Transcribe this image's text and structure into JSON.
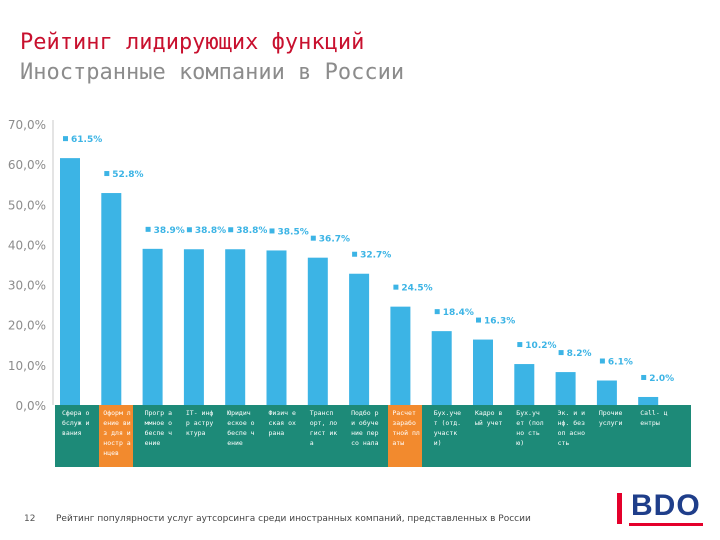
{
  "slide": {
    "title_line1": "Рейтинг лидирующих функций",
    "title_line2": "Иностранные компании в России",
    "page_number": "12",
    "footer": "Рейтинг популярности услуг аутсорсинга среди иностранных компаний, представленных в России",
    "logo_text": "BDO",
    "colors": {
      "title": "#c8102e",
      "subtitle": "#8c8c8c",
      "bar": "#3cb4e5",
      "label": "#3cb4e5",
      "category_strip": "#1d8a78",
      "category_highlight": "#f28a2e",
      "logo_blue": "#1f3e8a",
      "logo_red": "#e4002b"
    }
  },
  "chart_data": {
    "type": "bar",
    "ylim": [
      0,
      70
    ],
    "y_ticks": [
      "0,0%",
      "10,0%",
      "20,0%",
      "30,0%",
      "40,0%",
      "50,0%",
      "60,0%",
      "70,0%"
    ],
    "legend": "none",
    "categories": [
      "Сфера обслуживания",
      "Оформление виз для иностранцев",
      "Программное обеспечение",
      "IT-инфраструктура",
      "Юридическое обеспечение",
      "Физическая охрана",
      "Транспорт, логистика",
      "Подбор и обучение персонала",
      "Расчет заработной платы",
      "Бух.учет (отд. участки)",
      "Кадровый учет",
      "Бух.учет (полностью)",
      "Эк. и инф. безопасность",
      "Прочие услуги",
      "Call-центры"
    ],
    "category_display": [
      "Сфера обслуж ивания",
      "Оформ ление виз для иностр анцев",
      "Прогр аммное обеспе чение",
      "IT- инфр астру ктура",
      "Юридич еское обеспе чение",
      "Физич еская охрана",
      "Трансп орт, логист ика",
      "Подбо р и обуче ние персо нала",
      "Расчет зарабо тной платы",
      "Бух.учет (отд. участки)",
      "Кадро вый учет",
      "Бух.уч ет (полно стью)",
      "Эк. и инф. безоп асно сть",
      "Прочие услуги",
      "Call- центры"
    ],
    "highlight_categories": [
      1,
      8
    ],
    "values": [
      61.5,
      52.8,
      38.9,
      38.8,
      38.8,
      38.5,
      36.7,
      32.7,
      24.5,
      18.4,
      16.3,
      10.2,
      8.2,
      6.1,
      2.0
    ],
    "value_labels": [
      "61.5%",
      "52.8%",
      "38.9%",
      "38.8%",
      "38.8%",
      "38.5%",
      "36.7%",
      "32.7%",
      "24.5%",
      "18.4%",
      "16.3%",
      "10.2%",
      "8.2%",
      "6.1%",
      "2.0%"
    ]
  }
}
